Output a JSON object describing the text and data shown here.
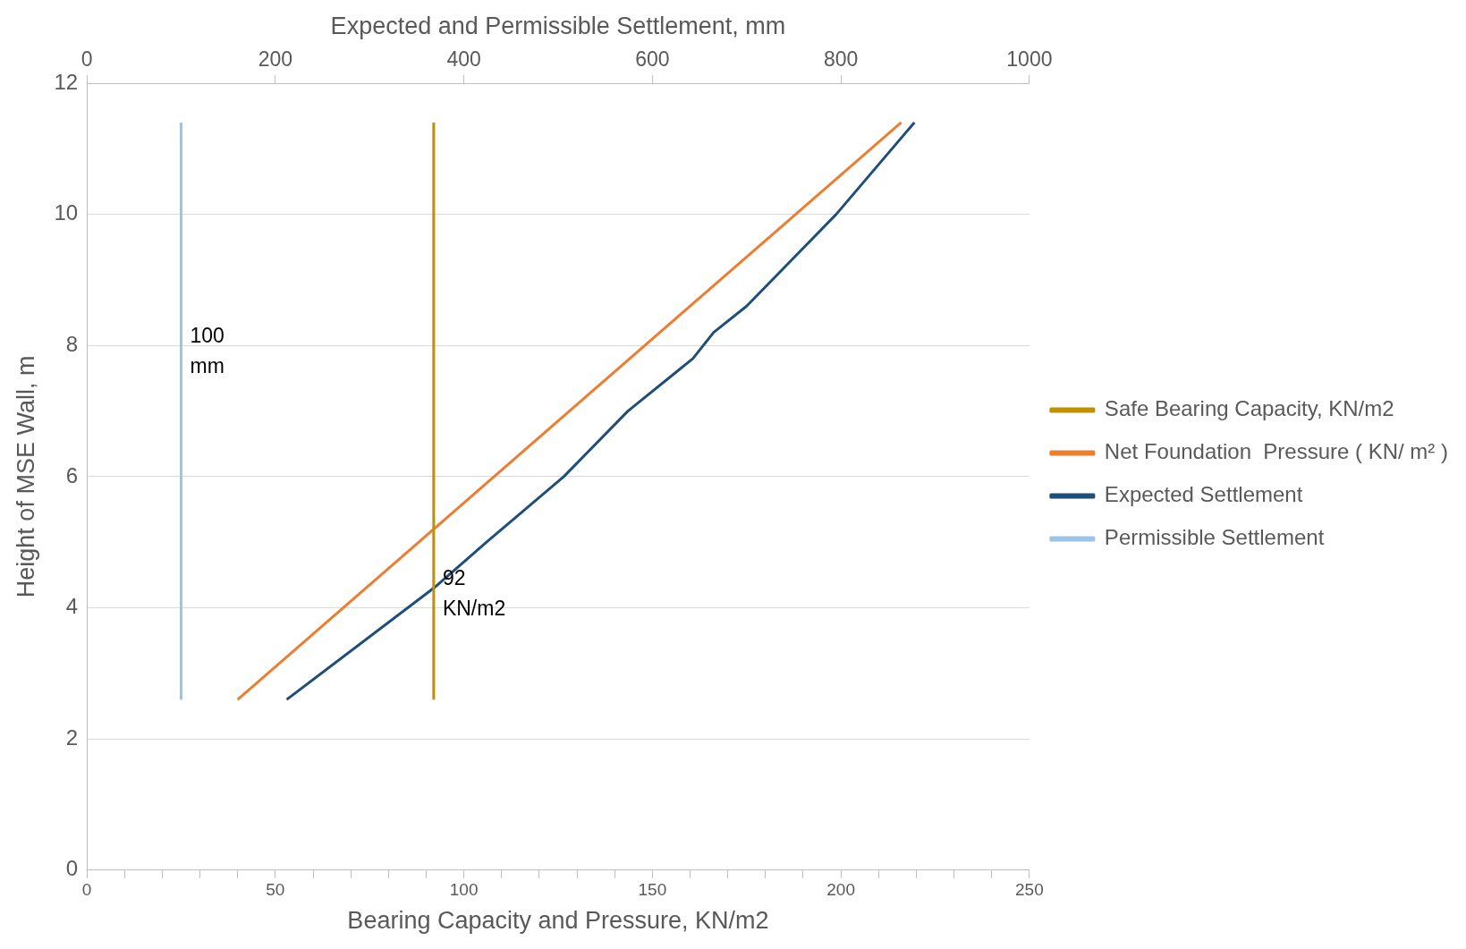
{
  "chart_data": {
    "type": "line",
    "xlabel": "Bearing Capacity and Pressure, KN/m2",
    "x2label": "Expected and Permissible Settlement, mm",
    "ylabel": "Height of MSE Wall, m",
    "xlim": [
      0,
      250
    ],
    "xticks": [
      0,
      {
        "value": 10,
        "label": null
      },
      {
        "value": 20,
        "label": null
      },
      {
        "value": 30,
        "label": null
      },
      {
        "value": 40,
        "label": null
      },
      50,
      {
        "value": 60,
        "label": null
      },
      {
        "value": 70,
        "label": null
      },
      {
        "value": 80,
        "label": null
      },
      {
        "value": 90,
        "label": null
      },
      100,
      {
        "value": 110,
        "label": null
      },
      {
        "value": 120,
        "label": null
      },
      {
        "value": 130,
        "label": null
      },
      {
        "value": 140,
        "label": null
      },
      150,
      {
        "value": 160,
        "label": null
      },
      {
        "value": 170,
        "label": null
      },
      {
        "value": 180,
        "label": null
      },
      {
        "value": 190,
        "label": null
      },
      200,
      {
        "value": 210,
        "label": null
      },
      {
        "value": 220,
        "label": null
      },
      {
        "value": 230,
        "label": null
      },
      {
        "value": 240,
        "label": null
      },
      250
    ],
    "x2lim": [
      0,
      1000
    ],
    "x2ticks": [
      0,
      200,
      400,
      600,
      800,
      1000
    ],
    "ylim": [
      0,
      12
    ],
    "yticks": [
      0,
      2,
      4,
      6,
      8,
      10,
      12
    ],
    "grid": "y",
    "legend": "right",
    "marker": "none",
    "line_style": "solid",
    "series": [
      {
        "name": "Safe Bearing Capacity, KN/m2",
        "color": "#bf9000",
        "x": [
          92,
          92
        ],
        "values": [
          2.6,
          11.4
        ]
      },
      {
        "name": "Net Foundation  Pressure ( KN/ m² )",
        "color": "#ed7d31",
        "x": [
          40,
          216
        ],
        "values": [
          2.6,
          11.4
        ]
      },
      {
        "name": "Expected Settlement",
        "color": "#1f4e79",
        "axis": "x2",
        "x": [
          212,
          368,
          424,
          506,
          574,
          643,
          665,
          700,
          795,
          878
        ],
        "values": [
          2.6,
          4.3,
          5,
          6,
          7,
          7.8,
          8.2,
          8.6,
          10,
          11.4
        ]
      },
      {
        "name": "Permissible Settlement",
        "color": "#9dc3e6",
        "axis": "x2",
        "x": [
          100,
          100
        ],
        "values": [
          2.6,
          11.4
        ]
      }
    ],
    "annotations": [
      {
        "text": "100 mm",
        "x": 25,
        "y": 7.9
      },
      {
        "text": "92 KN/m2",
        "x": 92,
        "y": 4.2
      }
    ]
  }
}
